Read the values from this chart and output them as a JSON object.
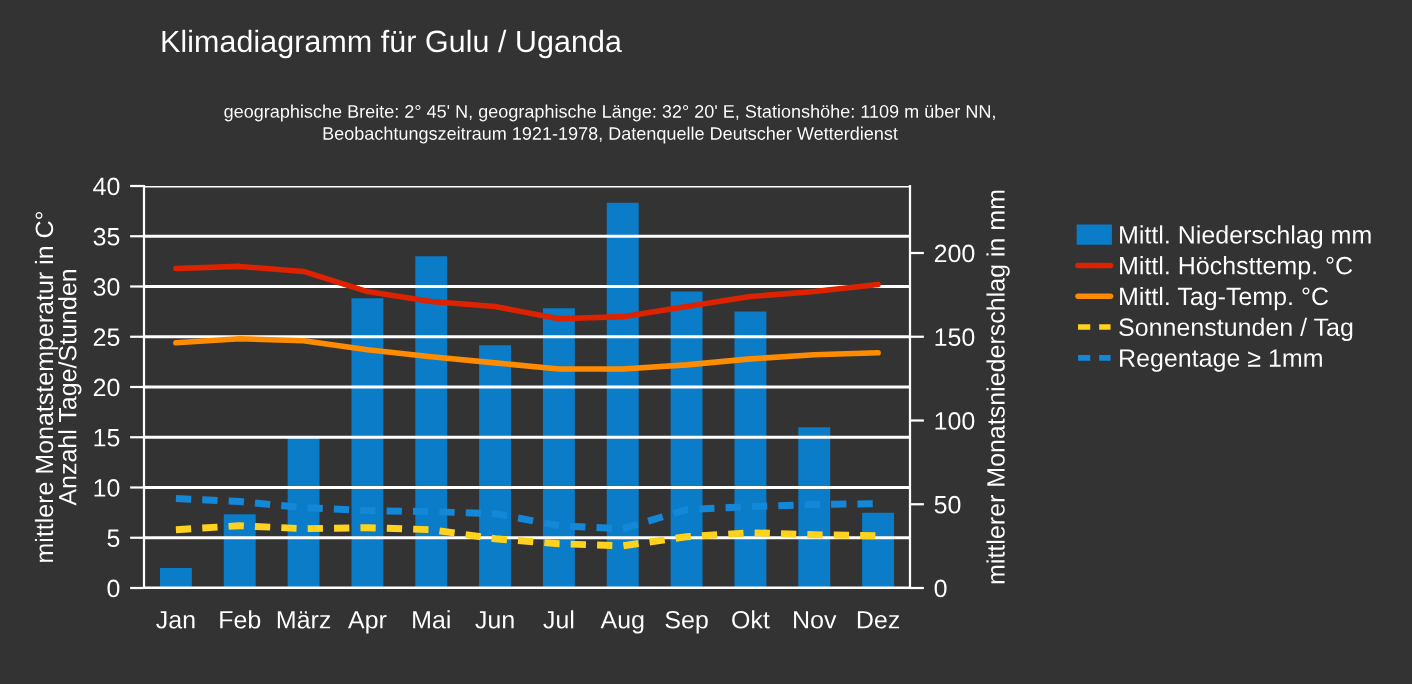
{
  "chart_data": {
    "type": "line",
    "title": "Klimadiagramm für Gulu / Uganda",
    "subtitle": "geographische Breite: 2° 45' N, geographische Länge: 32° 20' E, Stationshöhe: 1109 m über NN,\nBeobachtungszeitraum 1921-1978, Datenquelle Deutscher Wetterdienst",
    "ylabel": "mittlere Monatstemperatur in C°\nAnzahl Tage/Stunden",
    "y2label": "mittlerer Monatsniederschlag in mm",
    "categories": [
      "Jan",
      "Feb",
      "März",
      "Apr",
      "Mai",
      "Jun",
      "Jul",
      "Aug",
      "Sep",
      "Okt",
      "Nov",
      "Dez"
    ],
    "series": [
      {
        "name": "Mittl. Niederschlag mm",
        "type": "bar",
        "axis": "y2",
        "color": "#0a7cc8",
        "values": [
          12,
          44,
          90,
          173,
          198,
          145,
          167,
          230,
          177,
          165,
          96,
          45
        ]
      },
      {
        "name": "Mittl. Höchsttemp. °C",
        "line_style": "solid",
        "color": "#dd2200",
        "values": [
          31.8,
          32.0,
          31.5,
          29.5,
          28.5,
          28.0,
          26.8,
          27.0,
          28.0,
          29.0,
          29.5,
          30.2
        ]
      },
      {
        "name": "Mittl. Tag-Temp. °C",
        "line_style": "solid",
        "color": "#ff8c00",
        "values": [
          24.4,
          24.8,
          24.6,
          23.7,
          23.0,
          22.4,
          21.8,
          21.8,
          22.2,
          22.8,
          23.2,
          23.4
        ]
      },
      {
        "name": "Sonnenstunden / Tag",
        "line_style": "dashed",
        "color": "#ffd21e",
        "values": [
          5.8,
          6.2,
          5.9,
          6.0,
          5.8,
          4.9,
          4.4,
          4.2,
          5.1,
          5.5,
          5.3,
          5.2
        ]
      },
      {
        "name": "Regentage ≥ 1mm",
        "line_style": "dashed",
        "color": "#1488d8",
        "values": [
          8.9,
          8.6,
          8.0,
          7.7,
          7.6,
          7.4,
          6.2,
          5.9,
          7.8,
          8.1,
          8.3,
          8.4
        ]
      }
    ],
    "ylim": [
      0,
      40
    ],
    "yticks": [
      0,
      5,
      10,
      15,
      20,
      25,
      30,
      35,
      40
    ],
    "y2lim": [
      0,
      240
    ],
    "y2ticks": [
      0,
      50,
      100,
      150,
      200
    ],
    "grid": "y",
    "legend": "right"
  }
}
